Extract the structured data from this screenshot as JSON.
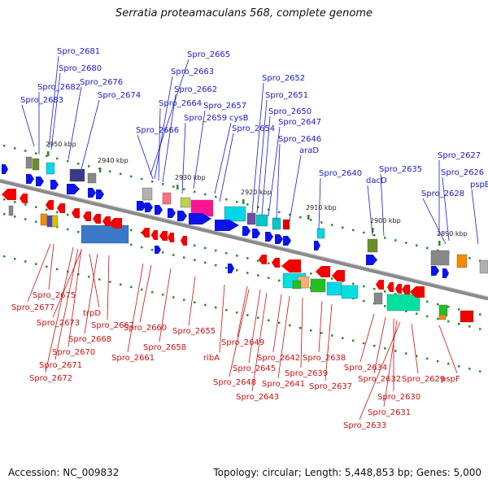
{
  "title": "Serratia proteamaculans 568, complete genome",
  "accession": "Accession: NC_009832",
  "topology": "Topology: circular; Length: 5,448,853 bp; Genes: 5,000",
  "colors": {
    "forward_label": "#1a1acc",
    "reverse_label": "#cc1111",
    "forward_arrow": "#0a14e8",
    "reverse_arrow": "#f20000",
    "backbone": "#808080",
    "tick_green": "#2a8a2a"
  },
  "ticks": [
    "2950 kbp",
    "2940 kbp",
    "2930 kbp",
    "2920 kbp",
    "2910 kbp",
    "2900 kbp",
    "2890 kbp"
  ],
  "forward_genes": [
    "Spro_2681",
    "Spro_2680",
    "Spro_2682",
    "Spro_2676",
    "Spro_2683",
    "Spro_2674",
    "Spro_2665",
    "Spro_2663",
    "Spro_2662",
    "Spro_2664",
    "Spro_2657",
    "Spro_2659",
    "cysB",
    "Spro_2666",
    "Spro_2654",
    "Spro_2652",
    "Spro_2651",
    "Spro_2650",
    "Spro_2647",
    "Spro_2646",
    "araD",
    "Spro_2640",
    "dacD",
    "Spro_2635",
    "Spro_2627",
    "Spro_2626",
    "Spro_2628",
    "pspB"
  ],
  "reverse_genes": [
    "Spro_2675",
    "Spro_2677",
    "trpD",
    "Spro_2673",
    "Spro_2667",
    "Spro_2668",
    "Spro_2670",
    "Spro_2671",
    "Spro_2672",
    "Spro_2660",
    "Spro_2658",
    "Spro_2661",
    "Spro_2655",
    "ribA",
    "Spro_2649",
    "Spro_2645",
    "Spro_2648",
    "Spro_2643",
    "Spro_2642",
    "Spro_2641",
    "Spro_2639",
    "Spro_2638",
    "Spro_2637",
    "Spro_2634",
    "Spro_2632",
    "Spro_2630",
    "Spro_2631",
    "Spro_2633",
    "Spro_2629",
    "pspF"
  ]
}
